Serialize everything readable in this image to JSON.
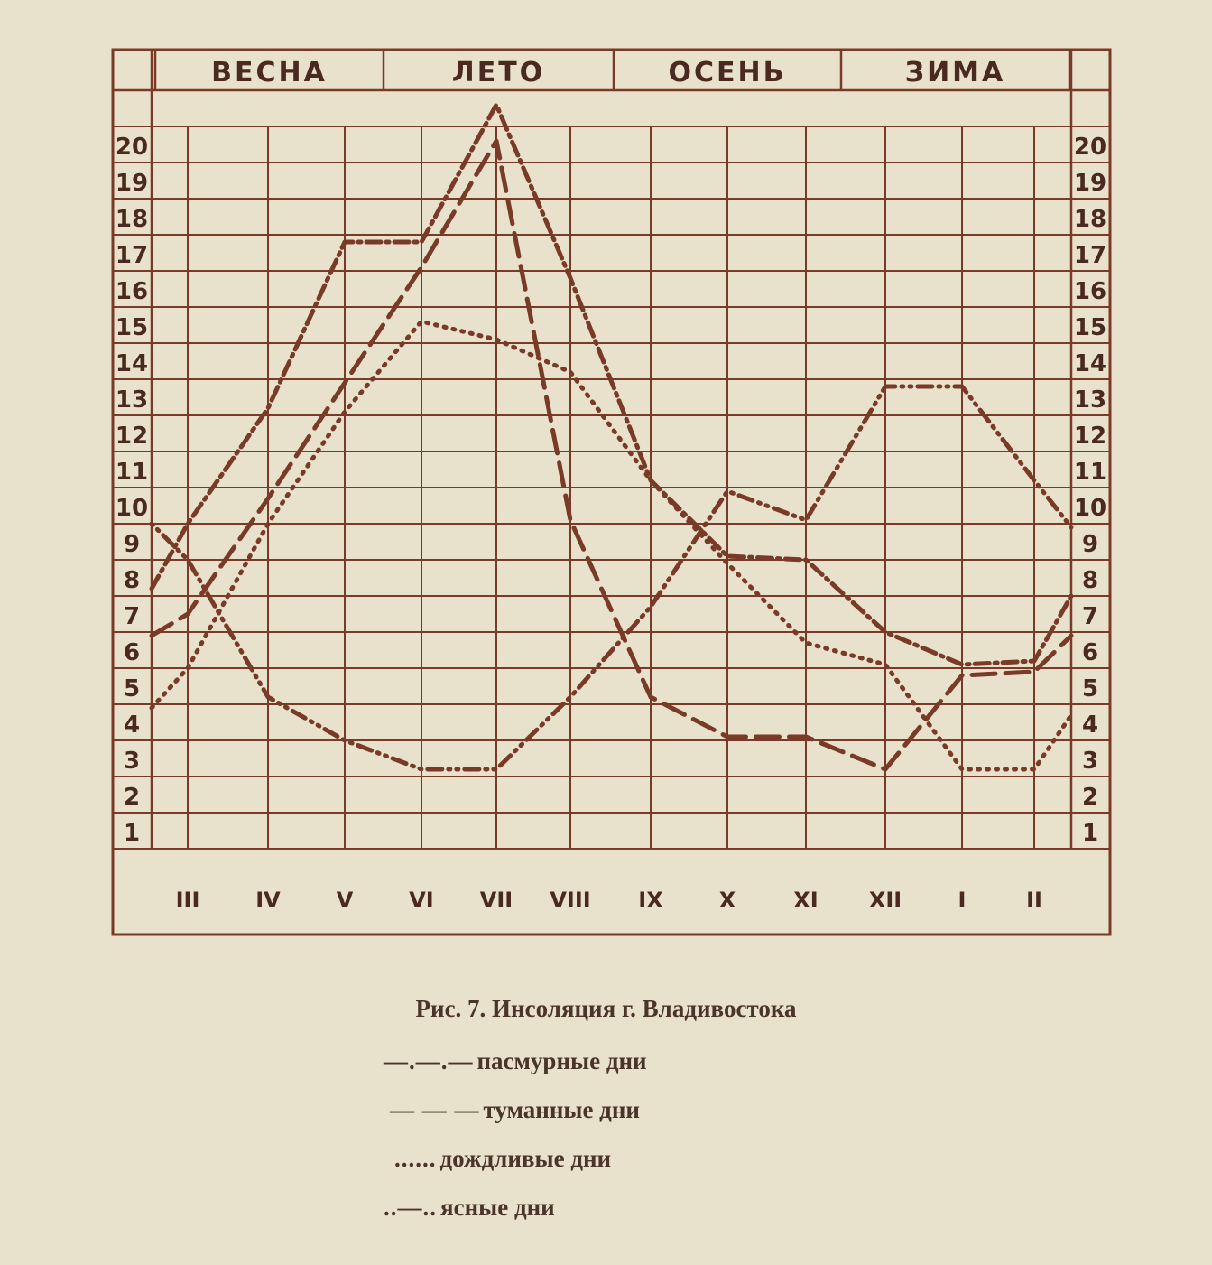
{
  "chart_data": {
    "type": "line",
    "title": "Рис. 7. Инсоляция г. Владивостока",
    "seasons": [
      "ВЕСНА",
      "ЛЕТО",
      "ОСЕНЬ",
      "ЗИМА"
    ],
    "categories": [
      "III",
      "IV",
      "V",
      "VI",
      "VII",
      "VIII",
      "IX",
      "X",
      "XI",
      "XII",
      "I",
      "II"
    ],
    "y_ticks": [
      1,
      2,
      3,
      4,
      5,
      6,
      7,
      8,
      9,
      10,
      11,
      12,
      13,
      14,
      15,
      16,
      17,
      18,
      19,
      20
    ],
    "ylim": [
      0,
      20
    ],
    "grid": true,
    "legend_placement": "bottom",
    "ink_color": "#7a3a28",
    "series": [
      {
        "name": "пасмурные дни",
        "legend_sample": "—.—.—",
        "style": "dash-dot",
        "edge_start": 7.2,
        "values": [
          9.0,
          12.2,
          16.8,
          16.8,
          20.6,
          15.8,
          10.2,
          8.1,
          8.0,
          6.0,
          5.1,
          5.2
        ],
        "edge_end": 7.0
      },
      {
        "name": "туманные дни",
        "legend_sample": "— — —",
        "style": "dashed",
        "edge_start": 5.9,
        "values": [
          6.5,
          9.7,
          12.9,
          16.1,
          19.6,
          9.1,
          4.2,
          3.1,
          3.1,
          2.2,
          4.8,
          4.9
        ],
        "edge_end": 5.9
      },
      {
        "name": "дождливые дни",
        "legend_sample": "......",
        "style": "dotted",
        "edge_start": 3.9,
        "values": [
          5.0,
          9.0,
          12.1,
          14.6,
          14.1,
          13.2,
          10.2,
          7.9,
          5.7,
          5.1,
          2.2,
          2.2
        ],
        "edge_end": 3.7
      },
      {
        "name": "ясные дни",
        "legend_sample": "..—..",
        "style": "dot-dot-dash",
        "edge_start": 9.0,
        "values": [
          8.0,
          4.2,
          3.0,
          2.2,
          2.2,
          4.2,
          6.7,
          9.9,
          9.1,
          12.8,
          12.8,
          10.2
        ],
        "edge_end": 8.9
      }
    ]
  }
}
